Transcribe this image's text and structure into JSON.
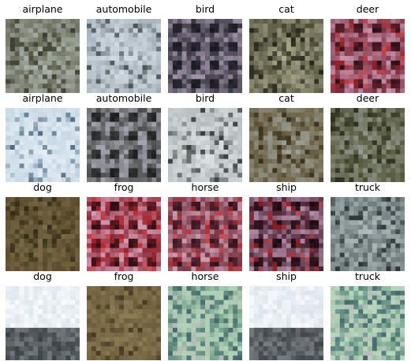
{
  "grid": {
    "rows": [
      {
        "cells": [
          {
            "label": "airplane",
            "base": "#6f7360",
            "accent": "#c9d4d6",
            "dark": "#2f3026",
            "style": "cloudy"
          },
          {
            "label": "automobile",
            "base": "#a7b4bd",
            "accent": "#e8f0f4",
            "dark": "#3a3d3a",
            "style": "cloudy"
          },
          {
            "label": "bird",
            "base": "#3a3540",
            "accent": "#b7a9c0",
            "dark": "#111218",
            "style": "mosaic"
          },
          {
            "label": "cat",
            "base": "#5e5d45",
            "accent": "#c8c8b0",
            "dark": "#1a1c14",
            "style": "cloudy"
          },
          {
            "label": "deer",
            "base": "#7a2a3a",
            "accent": "#d9a8c6",
            "dark": "#1a0a10",
            "style": "mosaic-red"
          }
        ]
      },
      {
        "cells": [
          {
            "label": "airplane",
            "base": "#c7d9e6",
            "accent": "#f4f8fb",
            "dark": "#2c4a62",
            "style": "cloudy"
          },
          {
            "label": "automobile",
            "base": "#4a4c4a",
            "accent": "#b9b7c8",
            "dark": "#111413",
            "style": "mosaic"
          },
          {
            "label": "bird",
            "base": "#b5bdbf",
            "accent": "#eef3f3",
            "dark": "#1f2120",
            "style": "cloudy"
          },
          {
            "label": "cat",
            "base": "#6a5e40",
            "accent": "#b7c4c6",
            "dark": "#2a2518",
            "style": "cloudy"
          },
          {
            "label": "deer",
            "base": "#575a3c",
            "accent": "#aeb9b6",
            "dark": "#22241a",
            "style": "cloudy"
          }
        ]
      },
      {
        "cells": [
          {
            "label": "dog",
            "base": "#5b4c2c",
            "accent": "#8a7c58",
            "dark": "#2b2414",
            "style": "cloudy"
          },
          {
            "label": "frog",
            "base": "#8a2430",
            "accent": "#e7b6cf",
            "dark": "#1b0a0e",
            "style": "mosaic-red"
          },
          {
            "label": "horse",
            "base": "#7a3344",
            "accent": "#e0b5c8",
            "dark": "#1d0d12",
            "style": "mosaic-red"
          },
          {
            "label": "ship",
            "base": "#4b2030",
            "accent": "#c9a6c4",
            "dark": "#100608",
            "style": "mosaic-red"
          },
          {
            "label": "truck",
            "base": "#6f7a7a",
            "accent": "#c7d6d8",
            "dark": "#222826",
            "style": "cloudy"
          }
        ]
      },
      {
        "cells": [
          {
            "label": "dog",
            "base": "#dde7ee",
            "accent": "#ffffff",
            "dark": "#1a1d1f",
            "style": "bottom-dark"
          },
          {
            "label": "frog",
            "base": "#6e5f3d",
            "accent": "#9c8e64",
            "dark": "#3d321f",
            "style": "cloudy"
          },
          {
            "label": "horse",
            "base": "#6f9a87",
            "accent": "#bfe3c0",
            "dark": "#3a5a6a",
            "style": "noise"
          },
          {
            "label": "ship",
            "base": "#dbe6ee",
            "accent": "#ffffff",
            "dark": "#202426",
            "style": "bottom-dark"
          },
          {
            "label": "truck",
            "base": "#73a090",
            "accent": "#c6e6c2",
            "dark": "#3b5c68",
            "style": "noise"
          }
        ]
      }
    ]
  }
}
